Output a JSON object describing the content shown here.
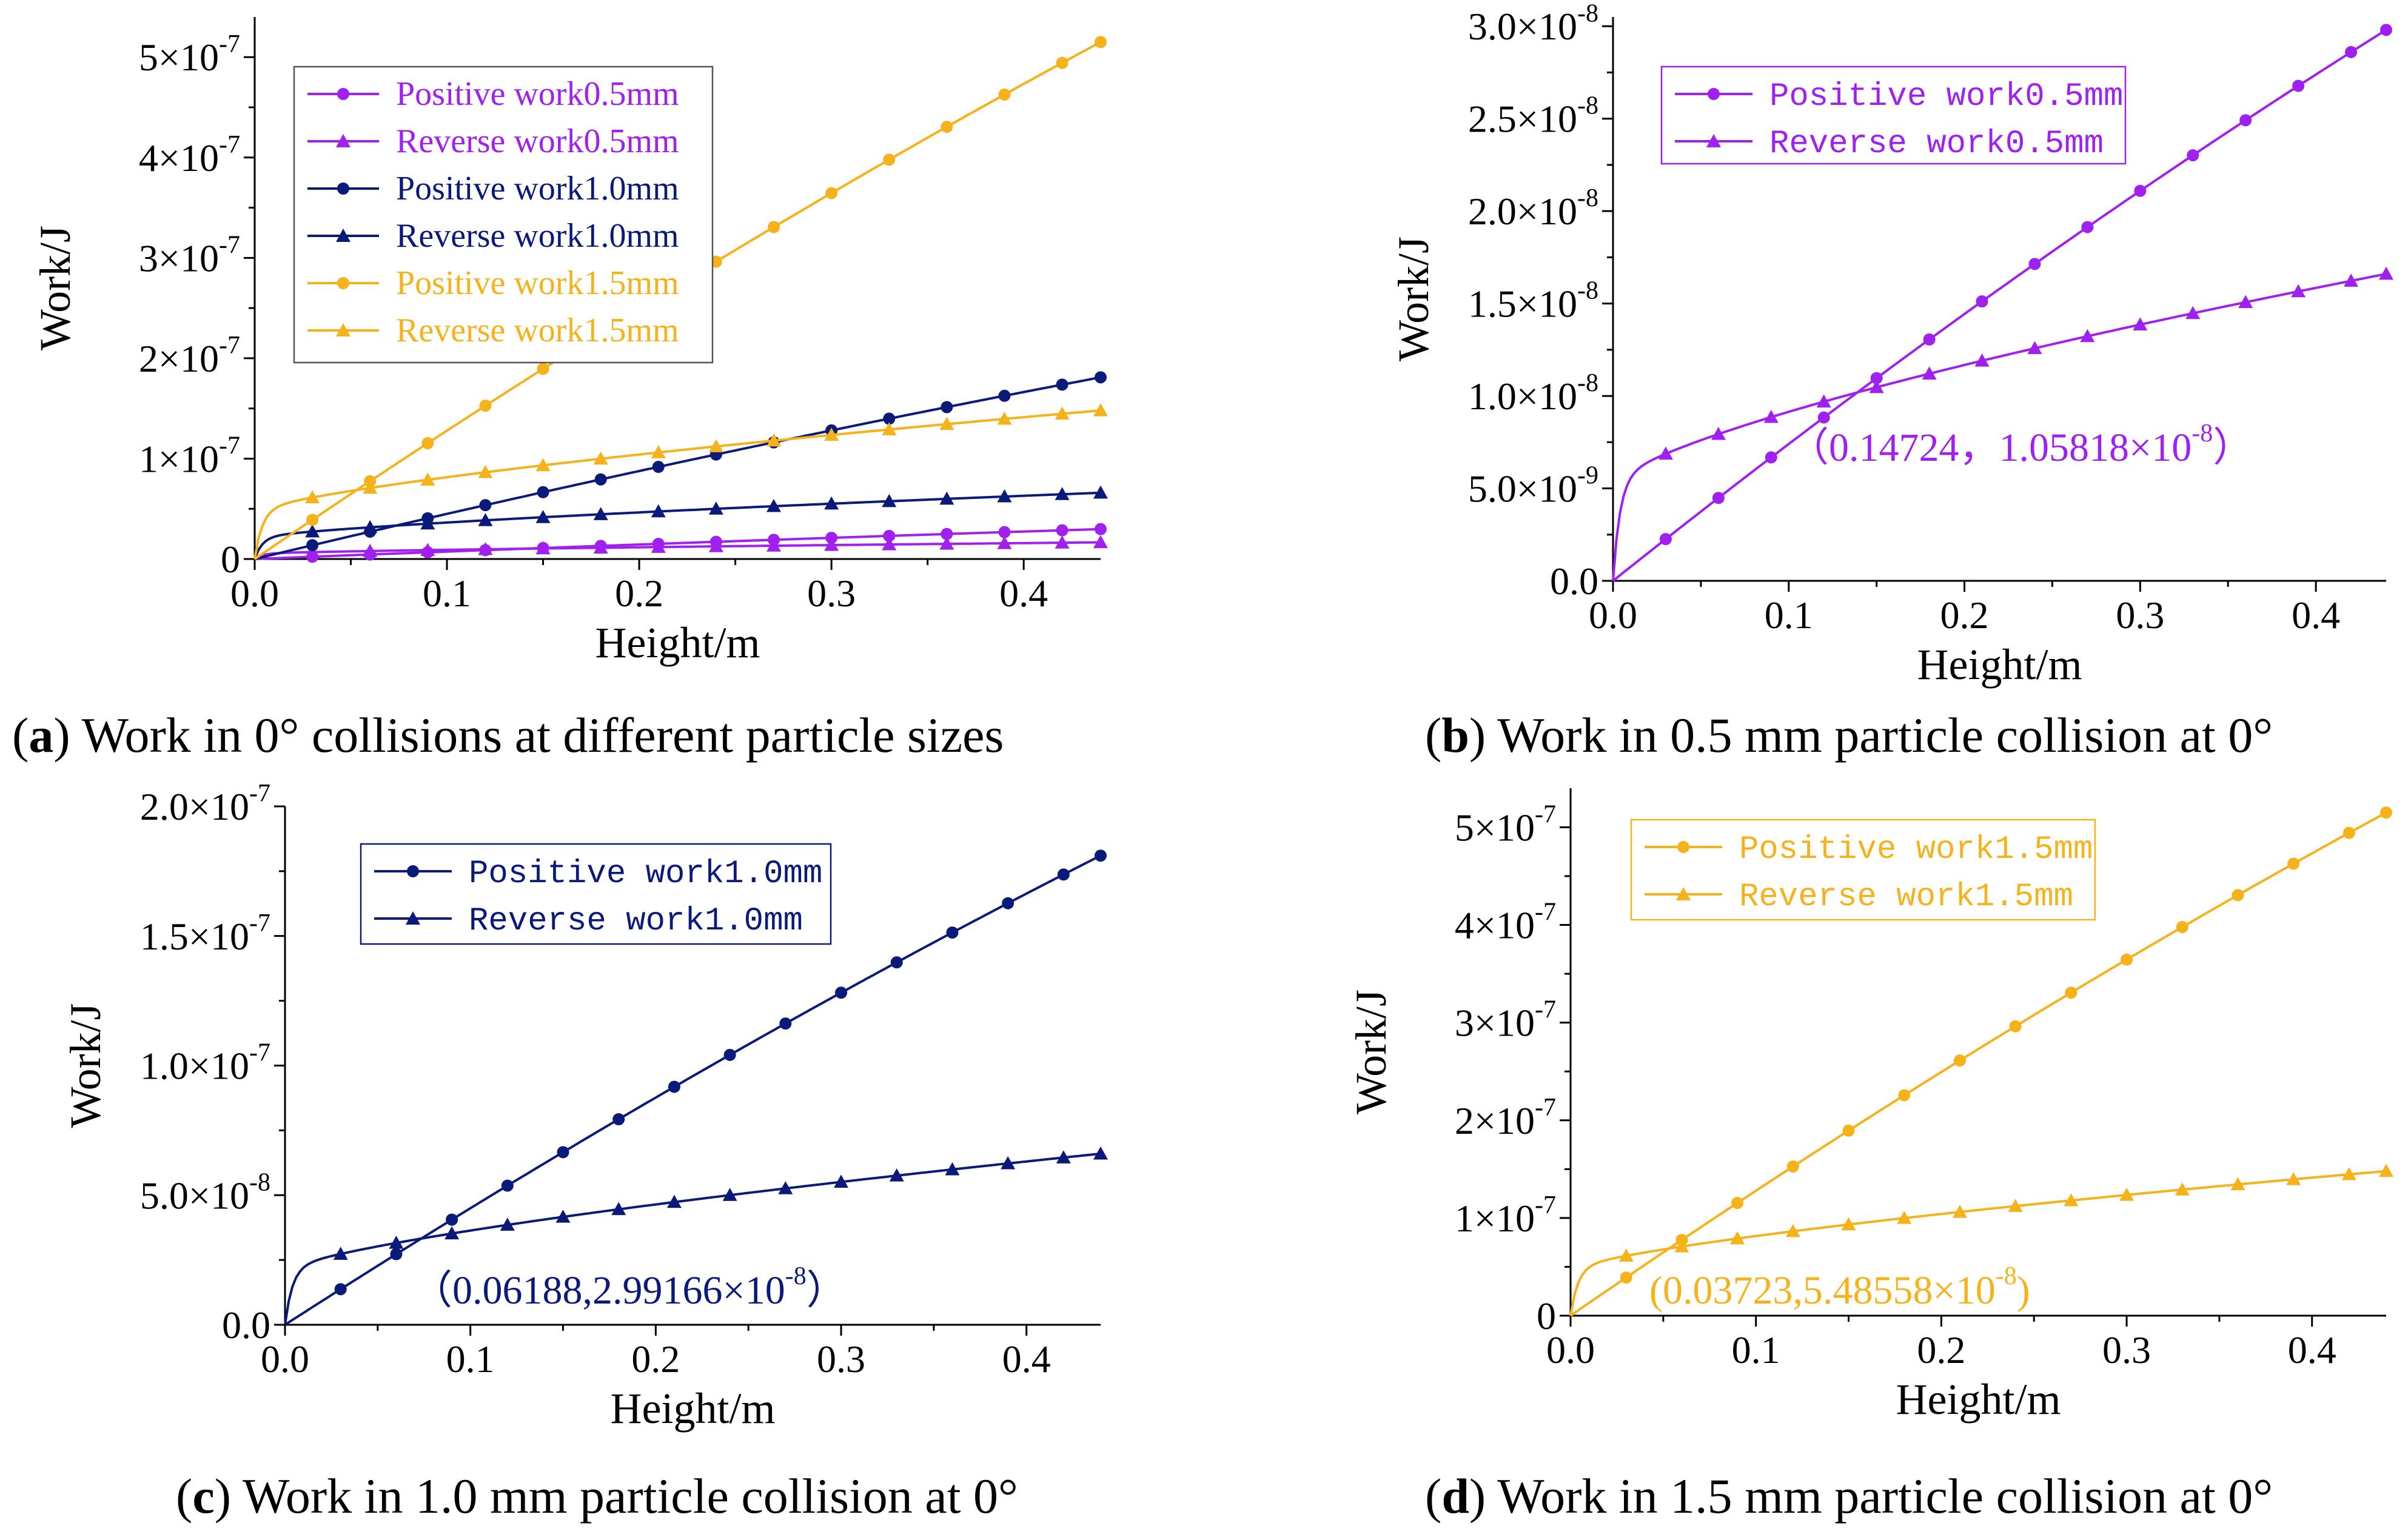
{
  "colors": {
    "purple": "#A020F0",
    "navy": "#0A1A7A",
    "orange": "#F5B21B"
  },
  "chart_data": [
    {
      "panel": "a",
      "type": "line",
      "caption_letter": "a",
      "caption_text": " Work in 0° collisions at different particle sizes",
      "xlabel": "Height/m",
      "ylabel": "Work/J",
      "xlim": [
        0,
        0.44
      ],
      "ylim": [
        0,
        5.4e-07
      ],
      "xticks": [
        0,
        0.1,
        0.2,
        0.3,
        0.4
      ],
      "xtick_labels": [
        "0.0",
        "0.1",
        "0.2",
        "0.3",
        "0.4"
      ],
      "yticks": [
        0,
        1e-07,
        2e-07,
        3e-07,
        4e-07,
        5e-07
      ],
      "ytick_mant": [
        "0",
        "1×10",
        "2×10",
        "3×10",
        "4×10",
        "5×10"
      ],
      "ytick_exp": [
        "",
        "-7",
        "-7",
        "-7",
        "-7",
        "-7"
      ],
      "legend": {
        "position": "top-left",
        "spaced": false
      },
      "series": [
        {
          "name": "Positive work0.5mm",
          "color": "#A020F0",
          "marker": "circle",
          "fn": "pos",
          "scale": 2.98e-08
        },
        {
          "name": "Reverse work0.5mm",
          "color": "#A020F0",
          "marker": "triangle",
          "fn": "rev",
          "scale": 1.66e-08
        },
        {
          "name": "Positive work1.0mm",
          "color": "#0A1A7A",
          "marker": "circle",
          "fn": "pos",
          "scale": 1.81e-07
        },
        {
          "name": "Reverse work1.0mm",
          "color": "#0A1A7A",
          "marker": "triangle",
          "fn": "rev",
          "scale": 6.6e-08
        },
        {
          "name": "Positive work1.5mm",
          "color": "#F5B21B",
          "marker": "circle",
          "fn": "pos",
          "scale": 5.15e-07
        },
        {
          "name": "Reverse work1.5mm",
          "color": "#F5B21B",
          "marker": "triangle",
          "fn": "rev",
          "scale": 1.48e-07
        }
      ]
    },
    {
      "panel": "b",
      "type": "line",
      "caption_letter": "b",
      "caption_text": " Work in 0.5 mm particle collision at 0°",
      "xlabel": "Height/m",
      "ylabel": "Work/J",
      "xlim": [
        0,
        0.44
      ],
      "ylim": [
        0,
        3.05e-08
      ],
      "xticks": [
        0,
        0.1,
        0.2,
        0.3,
        0.4
      ],
      "xtick_labels": [
        "0.0",
        "0.1",
        "0.2",
        "0.3",
        "0.4"
      ],
      "yticks": [
        0,
        5e-09,
        1e-08,
        1.5e-08,
        2e-08,
        2.5e-08,
        3e-08
      ],
      "ytick_mant": [
        "0.0",
        "5.0×10",
        "1.0×10",
        "1.5×10",
        "2.0×10",
        "2.5×10",
        "3.0×10"
      ],
      "ytick_exp": [
        "",
        "-9",
        "-8",
        "-8",
        "-8",
        "-8",
        "-8"
      ],
      "legend": {
        "position": "top-left",
        "spaced": true
      },
      "series": [
        {
          "name": "Positive work0.5mm",
          "color": "#A020F0",
          "marker": "circle",
          "fn": "pos",
          "scale": 2.98e-08
        },
        {
          "name": "Reverse work0.5mm",
          "color": "#A020F0",
          "marker": "triangle",
          "fn": "rev",
          "scale": 1.66e-08
        }
      ],
      "annotation": {
        "text": "（0.14724，1.05818×10",
        "exp": "-8",
        "tail": "）",
        "color": "#A020F0"
      }
    },
    {
      "panel": "c",
      "type": "line",
      "caption_letter": "c",
      "caption_text": " Work in 1.0 mm particle collision at 0°",
      "xlabel": "Height/m",
      "ylabel": "Work/J",
      "xlim": [
        0,
        0.44
      ],
      "ylim": [
        0,
        2e-07
      ],
      "xticks": [
        0,
        0.1,
        0.2,
        0.3,
        0.4
      ],
      "xtick_labels": [
        "0.0",
        "0.1",
        "0.2",
        "0.3",
        "0.4"
      ],
      "yticks": [
        0,
        5e-08,
        1e-07,
        1.5e-07,
        2e-07
      ],
      "ytick_mant": [
        "0.0",
        "5.0×10",
        "1.0×10",
        "1.5×10",
        "2.0×10"
      ],
      "ytick_exp": [
        "",
        "-8",
        "-7",
        "-7",
        "-7"
      ],
      "legend": {
        "position": "top-center",
        "spaced": true
      },
      "series": [
        {
          "name": "Positive work1.0mm",
          "color": "#0A1A7A",
          "marker": "circle",
          "fn": "pos",
          "scale": 1.81e-07
        },
        {
          "name": "Reverse work1.0mm",
          "color": "#0A1A7A",
          "marker": "triangle",
          "fn": "rev",
          "scale": 6.6e-08
        }
      ],
      "annotation": {
        "text": "（0.06188,2.99166×10",
        "exp": "-8",
        "tail": "）",
        "color": "#0A1A7A"
      }
    },
    {
      "panel": "d",
      "type": "line",
      "caption_letter": "d",
      "caption_text": " Work in 1.5 mm particle collision at 0°",
      "xlabel": "Height/m",
      "ylabel": "Work/J",
      "xlim": [
        0,
        0.44
      ],
      "ylim": [
        0,
        5.4e-07
      ],
      "xticks": [
        0,
        0.1,
        0.2,
        0.3,
        0.4
      ],
      "xtick_labels": [
        "0.0",
        "0.1",
        "0.2",
        "0.3",
        "0.4"
      ],
      "yticks": [
        0,
        1e-07,
        2e-07,
        3e-07,
        4e-07,
        5e-07
      ],
      "ytick_mant": [
        "0",
        "1×10",
        "2×10",
        "3×10",
        "4×10",
        "5×10"
      ],
      "ytick_exp": [
        "",
        "-7",
        "-7",
        "-7",
        "-7",
        "-7"
      ],
      "legend": {
        "position": "top-left",
        "spaced": true
      },
      "series": [
        {
          "name": "Positive work1.5mm",
          "color": "#F5B21B",
          "marker": "circle",
          "fn": "pos",
          "scale": 5.15e-07
        },
        {
          "name": "Reverse work1.5mm",
          "color": "#F5B21B",
          "marker": "triangle",
          "fn": "rev",
          "scale": 1.48e-07
        }
      ],
      "annotation": {
        "text": "(0.03723,5.48558×10",
        "exp": "-8",
        "tail": ")",
        "color": "#F5B21B"
      }
    }
  ]
}
